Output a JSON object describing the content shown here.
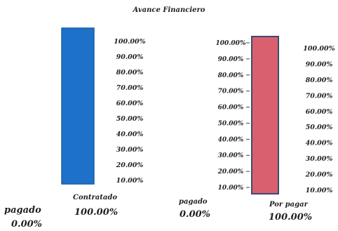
{
  "chart_data": [
    {
      "type": "bar",
      "title": "Avance Financiero",
      "series": [
        {
          "name": "Contratado",
          "values": [
            100.0
          ],
          "color": "#1d71c9"
        }
      ],
      "ylim": [
        0,
        100
      ],
      "ytick_labels": [
        "100.00%",
        "90.00%",
        "80.00%",
        "70.00%",
        "60.00%",
        "50.00%",
        "40.00%",
        "30.00%",
        "20.00%",
        "10.00%"
      ],
      "grid": false,
      "footer": {
        "pagado_label": "pagado",
        "pagado_value": "0.00%",
        "contratado_value": "100.00%"
      }
    },
    {
      "type": "bar",
      "series": [
        {
          "name": "Por pagar",
          "values": [
            100.0
          ],
          "color": "#d9606d"
        }
      ],
      "ylim": [
        0,
        100
      ],
      "ytick_labels_left": [
        "100.00%",
        "90.00%",
        "80.00%",
        "70.00%",
        "60.00%",
        "50.00%",
        "40.00%",
        "30.00%",
        "20.00%",
        "10.00%"
      ],
      "ytick_labels_right": [
        "100.00%",
        "90.00%",
        "80.00%",
        "70.00%",
        "60.00%",
        "50.00%",
        "40.00%",
        "30.00%",
        "20.00%",
        "10.00%"
      ],
      "grid": false,
      "footer": {
        "pagado_label": "pagado",
        "pagado_value": "0.00%",
        "porpagar_value": "100.00%"
      }
    }
  ]
}
